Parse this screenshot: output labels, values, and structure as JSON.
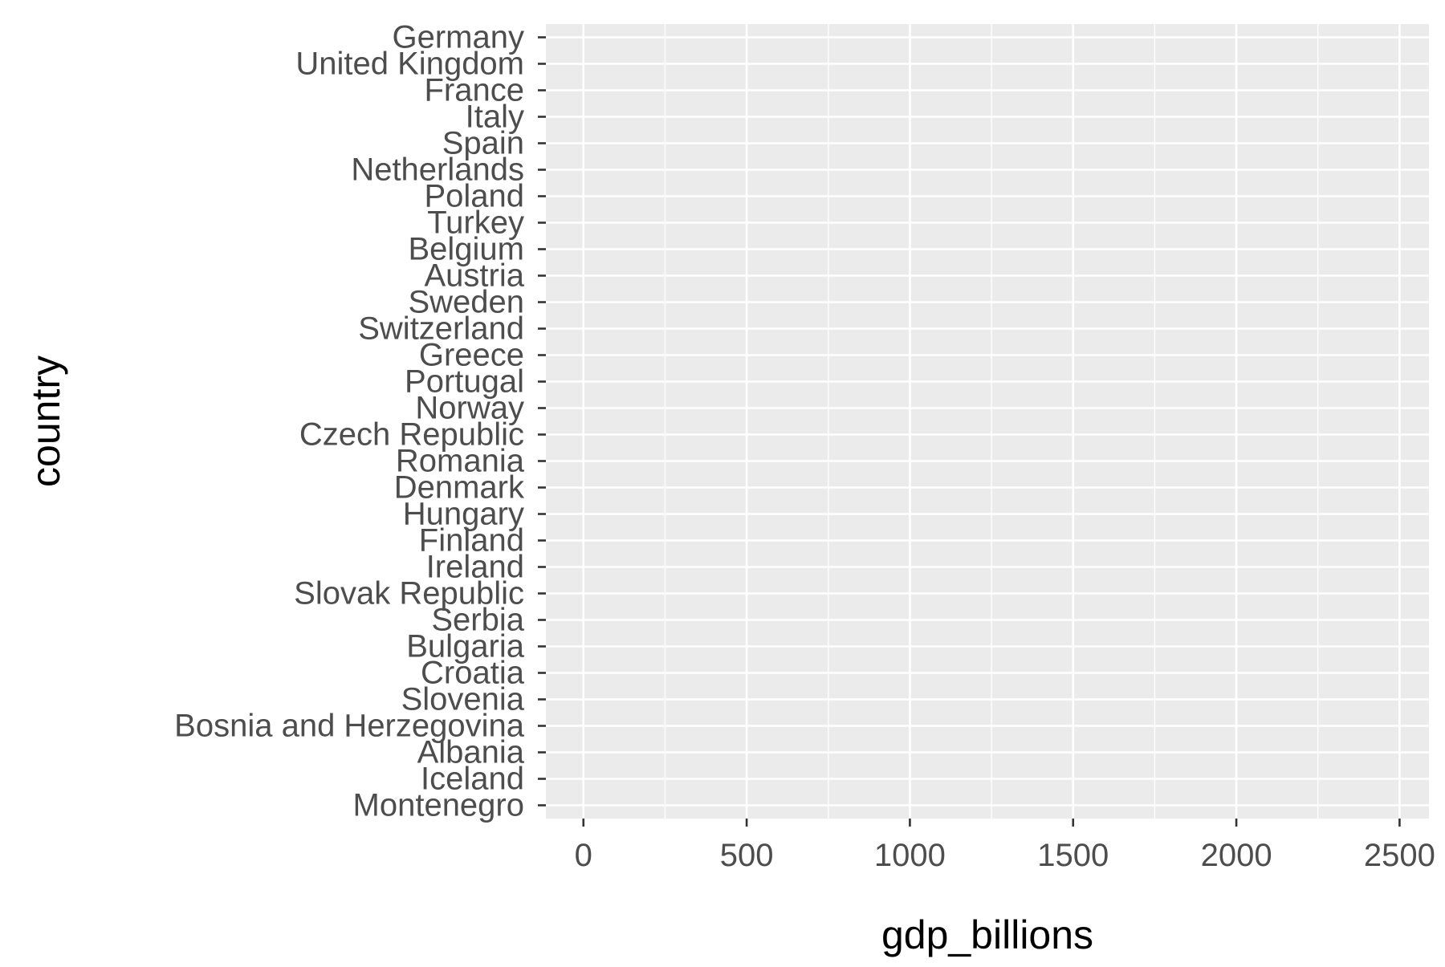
{
  "chart_data": {
    "type": "bar",
    "orientation": "horizontal",
    "xlabel": "gdp_billions",
    "ylabel": "country",
    "categories": [
      "Germany",
      "United Kingdom",
      "France",
      "Italy",
      "Spain",
      "Netherlands",
      "Poland",
      "Turkey",
      "Belgium",
      "Austria",
      "Sweden",
      "Switzerland",
      "Greece",
      "Portugal",
      "Norway",
      "Czech Republic",
      "Romania",
      "Denmark",
      "Hungary",
      "Finland",
      "Ireland",
      "Slovak Republic",
      "Serbia",
      "Bulgaria",
      "Croatia",
      "Slovenia",
      "Bosnia and Herzegovina",
      "Albania",
      "Iceland",
      "Montenegro"
    ],
    "values": [
      null,
      null,
      null,
      null,
      null,
      null,
      null,
      null,
      null,
      null,
      null,
      null,
      null,
      null,
      null,
      null,
      null,
      null,
      null,
      null,
      null,
      null,
      null,
      null,
      null,
      null,
      null,
      null,
      null,
      null
    ],
    "xlim": [
      -115,
      2590
    ],
    "xticks": [
      0,
      500,
      1000,
      1500,
      2000,
      2500
    ],
    "xtick_labels": [
      "0",
      "500",
      "1000",
      "1500",
      "2000",
      "2500"
    ],
    "grid": true,
    "legend": "none",
    "colors": {
      "panel_background": "#EBEBEB",
      "grid_major": "#FFFFFF",
      "axis_tick": "#333333",
      "tick_text": "#4D4D4D",
      "title_text": "#000000"
    }
  }
}
